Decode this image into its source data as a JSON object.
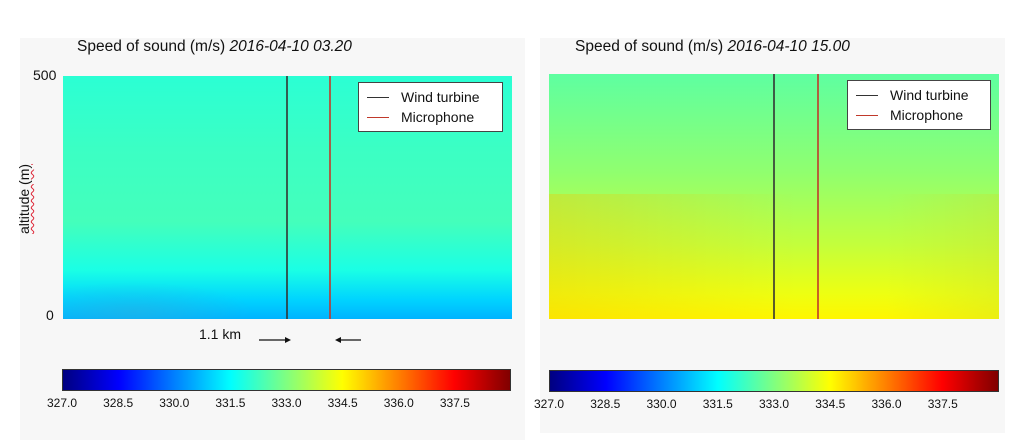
{
  "chart_data": [
    {
      "type": "heatmap",
      "title": "Speed of sound (m/s)",
      "date": "2016-04-10 03.20",
      "ylabel": "altitude (m)",
      "yticks": [
        "0",
        "500"
      ],
      "ylim": [
        0,
        500
      ],
      "annotation": "1.1 km",
      "legend": [
        {
          "name": "Wind turbine",
          "color": "#333333"
        },
        {
          "name": "Microphone",
          "color": "#c0392b"
        }
      ],
      "colorbar": {
        "colormap": "jet",
        "range": [
          327.0,
          339.0
        ],
        "ticks": [
          "327.0",
          "328.5",
          "330.0",
          "331.5",
          "333.0",
          "334.5",
          "336.0",
          "337.5"
        ]
      },
      "altitude_profile": [
        {
          "altitude": 0,
          "speed": 330.6
        },
        {
          "altitude": 40,
          "speed": 331.0
        },
        {
          "altitude": 100,
          "speed": 331.8
        },
        {
          "altitude": 200,
          "speed": 332.3
        },
        {
          "altitude": 350,
          "speed": 332.2
        },
        {
          "altitude": 500,
          "speed": 332.0
        }
      ]
    },
    {
      "type": "heatmap",
      "title": "Speed of sound (m/s)",
      "date": "2016-04-10 15.00",
      "legend": [
        {
          "name": "Wind turbine",
          "color": "#333333"
        },
        {
          "name": "Microphone",
          "color": "#c0392b"
        }
      ],
      "colorbar": {
        "colormap": "jet",
        "range": [
          327.0,
          339.0
        ],
        "ticks": [
          "327.0",
          "328.5",
          "330.0",
          "331.5",
          "333.0",
          "334.5",
          "336.0",
          "337.5"
        ]
      },
      "altitude_profile": [
        {
          "altitude": 0,
          "speed": 334.6
        },
        {
          "altitude": 50,
          "speed": 334.3
        },
        {
          "altitude": 150,
          "speed": 333.8
        },
        {
          "altitude": 300,
          "speed": 333.2
        },
        {
          "altitude": 500,
          "speed": 332.6
        }
      ]
    }
  ]
}
